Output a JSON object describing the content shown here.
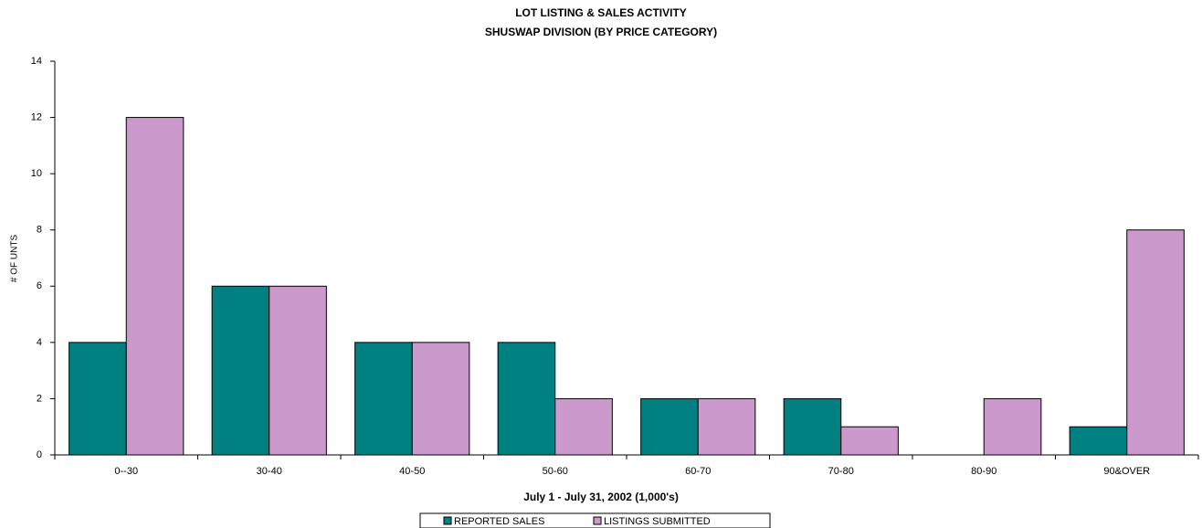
{
  "chart_data": {
    "type": "bar",
    "title": "LOT LISTING & SALES ACTIVITY",
    "subtitle": "SHUSWAP DIVISION (BY PRICE CATEGORY)",
    "x_label": "July 1 - July 31, 2002 (1,000's)",
    "y_label": "# OF UNTS",
    "categories": [
      "0--30",
      "30-40",
      "40-50",
      "50-60",
      "60-70",
      "70-80",
      "80-90",
      "90&OVER"
    ],
    "series": [
      {
        "name": "REPORTED SALES",
        "color": "#008080",
        "values": [
          4,
          6,
          4,
          4,
          2,
          2,
          0,
          1
        ]
      },
      {
        "name": "LISTINGS SUBMITTED",
        "color": "#cc99cc",
        "values": [
          12,
          6,
          4,
          2,
          2,
          1,
          2,
          8
        ]
      }
    ],
    "ylim": [
      0,
      14
    ],
    "yticks": [
      0,
      2,
      4,
      6,
      8,
      10,
      12,
      14
    ],
    "grid": false,
    "legend": "bottom"
  }
}
